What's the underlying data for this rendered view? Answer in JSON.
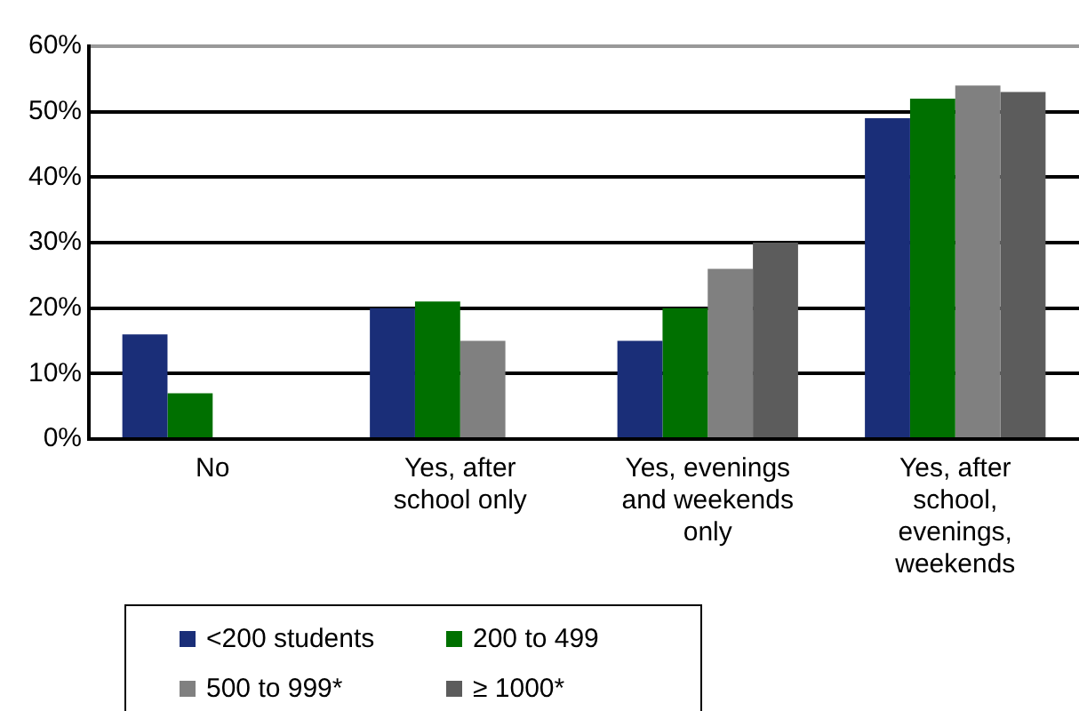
{
  "chart_data": {
    "type": "bar",
    "categories": [
      "No",
      "Yes, after school only",
      "Yes, evenings and weekends only",
      "Yes, after school, evenings, weekends"
    ],
    "series": [
      {
        "name": "<200 students",
        "color": "#1a2e78",
        "values": [
          16,
          20,
          15,
          49
        ]
      },
      {
        "name": "200 to 499",
        "color": "#007000",
        "values": [
          7,
          21,
          20,
          52
        ]
      },
      {
        "name": "500 to 999*",
        "color": "#808080",
        "values": [
          null,
          15,
          26,
          54
        ]
      },
      {
        "name": "≥ 1000*",
        "color": "#5c5c5c",
        "values": [
          null,
          null,
          30,
          53
        ]
      }
    ],
    "ylim": [
      0,
      60
    ],
    "yticks": [
      {
        "value": 0,
        "label": "0%"
      },
      {
        "value": 10,
        "label": "10%"
      },
      {
        "value": 20,
        "label": "20%"
      },
      {
        "value": 30,
        "label": "30%"
      },
      {
        "value": 40,
        "label": "40%"
      },
      {
        "value": 50,
        "label": "50%"
      },
      {
        "value": 60,
        "label": "60%"
      }
    ],
    "grid": "y",
    "legend": "bottom"
  }
}
